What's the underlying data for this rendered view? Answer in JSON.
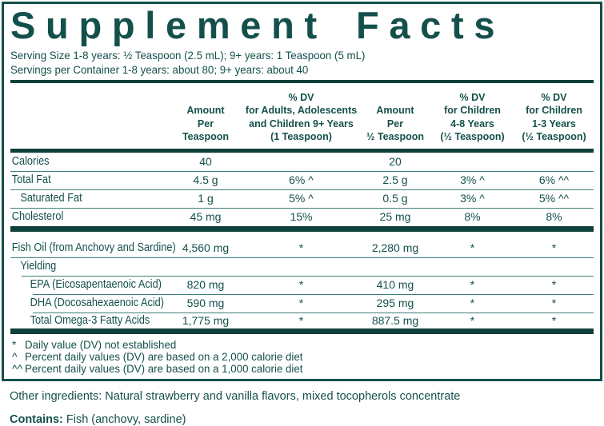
{
  "colors": {
    "ink": "#14504b",
    "thick_bar": "#0f403c",
    "hairline": "#3e7e7a",
    "background": "#ffffff"
  },
  "panel": {
    "title": "Supplement Facts",
    "serving_size": "Serving Size 1-8 years: ½ Teaspoon (2.5 mL); 9+ years: 1 Teaspoon (5 mL)",
    "servings_per_container": "Servings per Container 1-8 years: about 80; 9+ years: about 40"
  },
  "table": {
    "columns": [
      {
        "label": "Amount\nPer\nTeaspoon"
      },
      {
        "label": "% DV\nfor Adults, Adolescents\nand Children 9+ Years\n(1 Teaspoon)"
      },
      {
        "label": "Amount\nPer\n½ Teaspoon"
      },
      {
        "label": "% DV\nfor Children\n4-8 Years\n(½ Teaspoon)"
      },
      {
        "label": "% DV\nfor Children\n1-3 Years\n(½ Teaspoon)"
      }
    ],
    "rows": [
      {
        "name": "Calories",
        "values": [
          "40",
          "",
          "20",
          "",
          ""
        ]
      },
      {
        "name": "Total Fat",
        "values": [
          "4.5 g",
          "6% ^",
          "2.5 g",
          "3% ^",
          "6% ^^"
        ]
      },
      {
        "name": "Saturated Fat",
        "values": [
          "1 g",
          "5% ^",
          "0.5 g",
          "3% ^",
          "5% ^^"
        ]
      },
      {
        "name": "Cholesterol",
        "values": [
          "45 mg",
          "15%",
          "25 mg",
          "8%",
          "8%"
        ]
      },
      {
        "name": "Fish Oil (from Anchovy and Sardine)",
        "values": [
          "4,560 mg",
          "*",
          "2,280 mg",
          "*",
          "*"
        ]
      },
      {
        "name": "Yielding",
        "values": [
          "",
          "",
          "",
          "",
          ""
        ]
      },
      {
        "name": "EPA (Eicosapentaenoic Acid)",
        "values": [
          "820 mg",
          "*",
          "410 mg",
          "*",
          "*"
        ]
      },
      {
        "name": "DHA (Docosahexaenoic Acid)",
        "values": [
          "590 mg",
          "*",
          "295 mg",
          "*",
          "*"
        ]
      },
      {
        "name": "Total Omega-3 Fatty Acids",
        "values": [
          "1,775 mg",
          "*",
          "887.5 mg",
          "*",
          "*"
        ]
      }
    ]
  },
  "footnotes": [
    {
      "symbol": "*",
      "text": "Daily value (DV) not established"
    },
    {
      "symbol": "^",
      "text": "Percent daily values (DV) are based on a 2,000 calorie diet"
    },
    {
      "symbol": "^^",
      "text": "Percent daily values (DV) are based on a 1,000 calorie diet"
    }
  ],
  "other_ingredients": "Other ingredients: Natural strawberry and vanilla flavors, mixed tocopherols concentrate",
  "contains": {
    "label": "Contains:",
    "value": "Fish (anchovy, sardine)"
  }
}
